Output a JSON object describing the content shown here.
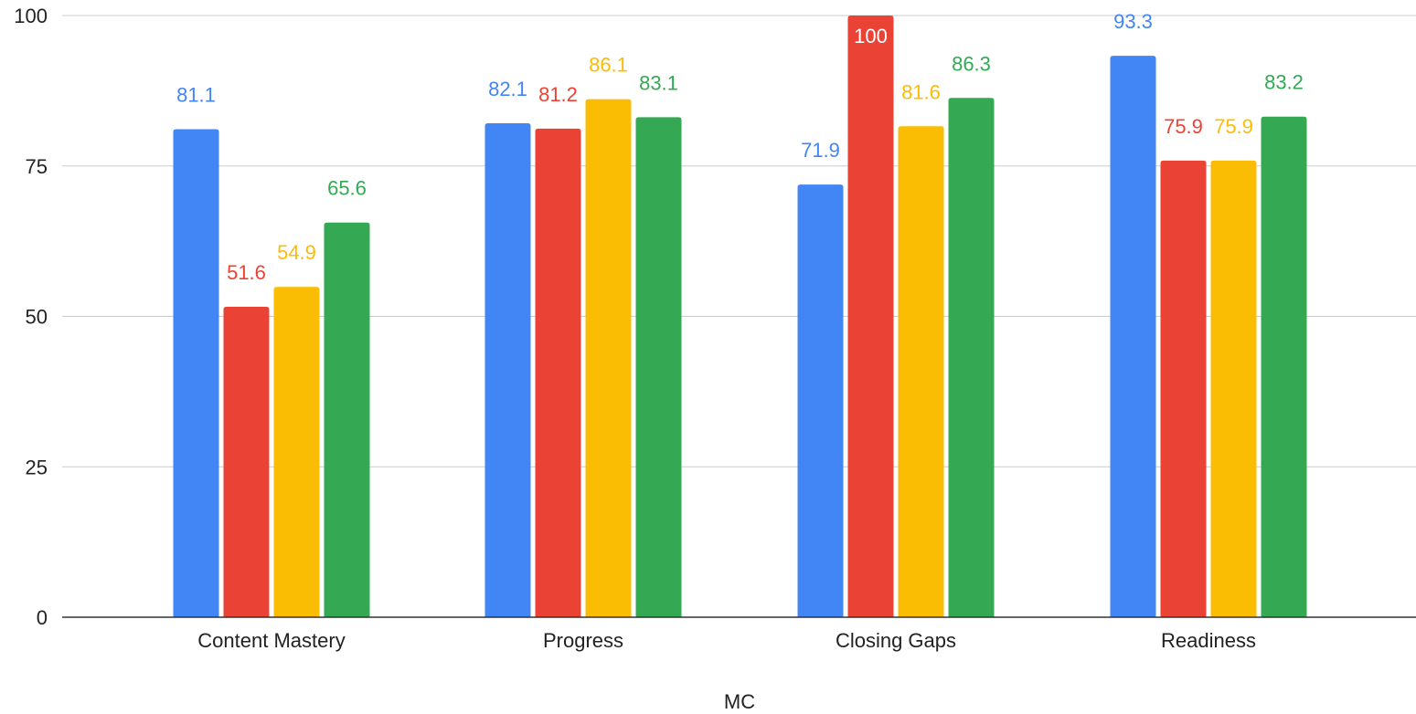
{
  "chart_data": {
    "type": "bar",
    "title": "",
    "xlabel": "MC",
    "ylabel": "",
    "ylim": [
      0,
      100
    ],
    "yticks": [
      0,
      25,
      50,
      75,
      100
    ],
    "grid": true,
    "legend": "none",
    "categories": [
      "Content Mastery",
      "Progress",
      "Closing Gaps",
      "Readiness"
    ],
    "series": [
      {
        "color": "#4285F4",
        "values": [
          81.1,
          82.1,
          71.9,
          93.3
        ]
      },
      {
        "color": "#EA4335",
        "values": [
          51.6,
          81.2,
          100,
          75.9
        ]
      },
      {
        "color": "#FBBC04",
        "values": [
          54.9,
          86.1,
          81.6,
          75.9
        ]
      },
      {
        "color": "#34A853",
        "values": [
          65.6,
          83.1,
          86.3,
          83.2
        ]
      }
    ]
  }
}
